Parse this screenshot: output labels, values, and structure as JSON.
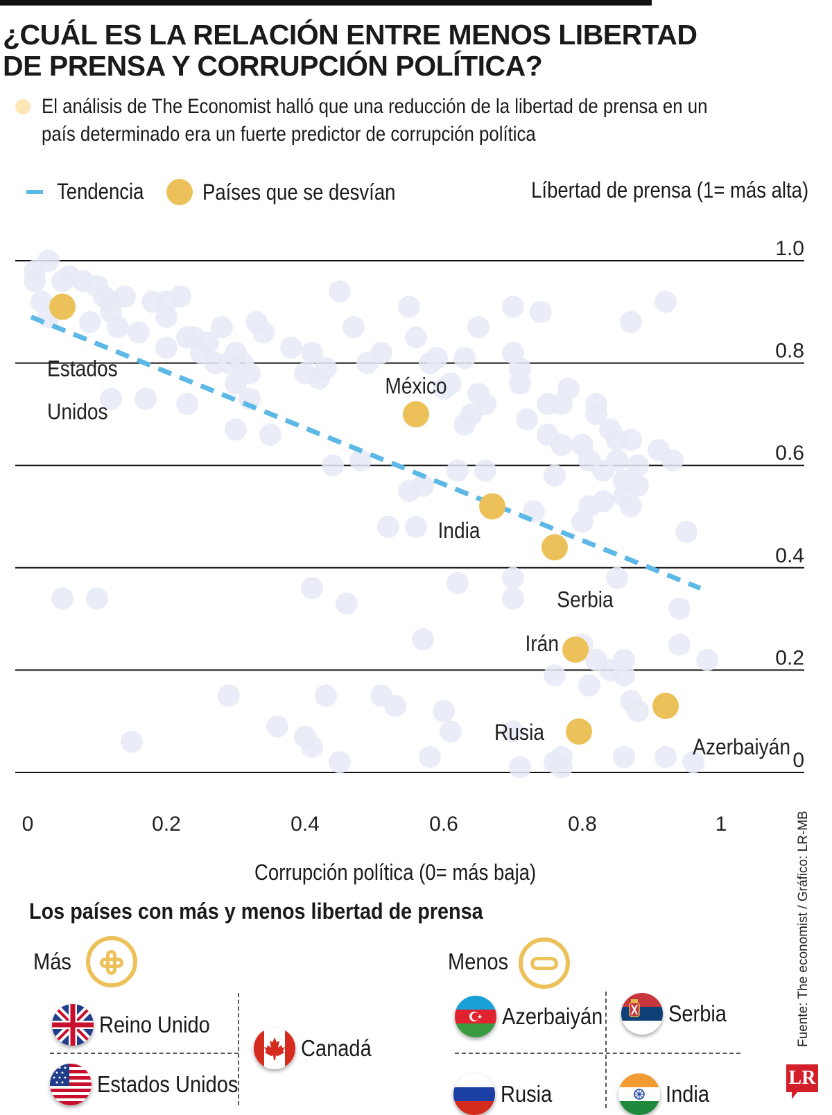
{
  "header": {
    "title_line1": "¿CUÁL ES LA RELACIÓN ENTRE MENOS LIBERTAD",
    "title_line2": "DE PRENSA Y CORRUPCIÓN POLÍTICA?",
    "intro": "El análisis de The Economist halló que  una reducción de la libertad de prensa en un país determinado era un fuerte predictor de corrupción política"
  },
  "legend": {
    "trend": "Tendencia",
    "highlight": "Países que se desvían"
  },
  "colors": {
    "background_dot": "#e6eaf6",
    "highlight_dot": "#ecc15a",
    "trend_line": "#5cb8e6",
    "intro_dot": "#fde7b7",
    "accent_red": "#d41f2b"
  },
  "chart_data": {
    "type": "scatter",
    "title": "¿CUÁL ES LA RELACIÓN ENTRE MENOS LIBERTAD DE PRENSA Y CORRUPCIÓN POLÍTICA?",
    "xlabel": "Corrupción política (0= más baja)",
    "ylabel": "Líbertad de prensa (1= más alta)",
    "xlim": [
      0,
      1
    ],
    "ylim": [
      0,
      1
    ],
    "x_ticks": [
      "0",
      "0.2",
      "0.4",
      "0.6",
      "0.8",
      "1"
    ],
    "x_tick_values": [
      0,
      0.2,
      0.4,
      0.6,
      0.8,
      1
    ],
    "y_ticks": [
      "1.0",
      "0.8",
      "0.6",
      "0.4",
      "0.2",
      "0"
    ],
    "y_tick_values": [
      1.0,
      0.8,
      0.6,
      0.4,
      0.2,
      0
    ],
    "grid": "horizontal",
    "trend": {
      "name": "Tendencia",
      "x": [
        0.005,
        0.97
      ],
      "y": [
        0.89,
        0.36
      ]
    },
    "highlighted": [
      {
        "name": "Estados Unidos",
        "label_lines": [
          "Estados",
          "Unidos"
        ],
        "x": 0.05,
        "y": 0.91
      },
      {
        "name": "México",
        "label_lines": [
          "México"
        ],
        "x": 0.56,
        "y": 0.7
      },
      {
        "name": "India",
        "label_lines": [
          "India"
        ],
        "x": 0.67,
        "y": 0.52
      },
      {
        "name": "Serbia",
        "label_lines": [
          "Serbia"
        ],
        "x": 0.76,
        "y": 0.44
      },
      {
        "name": "Irán",
        "label_lines": [
          "Irán"
        ],
        "x": 0.79,
        "y": 0.24
      },
      {
        "name": "Rusia",
        "label_lines": [
          "Rusia"
        ],
        "x": 0.795,
        "y": 0.08
      },
      {
        "name": "Azerbaiyán",
        "label_lines": [
          "Azerbaiyán"
        ],
        "x": 0.92,
        "y": 0.13
      }
    ],
    "series": [
      {
        "name": "Países",
        "points": [
          [
            0.01,
            0.98
          ],
          [
            0.03,
            1.0
          ],
          [
            0.01,
            0.96
          ],
          [
            0.05,
            0.96
          ],
          [
            0.06,
            0.97
          ],
          [
            0.08,
            0.96
          ],
          [
            0.1,
            0.95
          ],
          [
            0.11,
            0.93
          ],
          [
            0.12,
            0.92
          ],
          [
            0.02,
            0.92
          ],
          [
            0.03,
            0.89
          ],
          [
            0.09,
            0.88
          ],
          [
            0.12,
            0.9
          ],
          [
            0.14,
            0.93
          ],
          [
            0.16,
            0.86
          ],
          [
            0.13,
            0.87
          ],
          [
            0.18,
            0.92
          ],
          [
            0.2,
            0.89
          ],
          [
            0.2,
            0.92
          ],
          [
            0.22,
            0.93
          ],
          [
            0.2,
            0.83
          ],
          [
            0.23,
            0.85
          ],
          [
            0.24,
            0.85
          ],
          [
            0.26,
            0.84
          ],
          [
            0.28,
            0.87
          ],
          [
            0.25,
            0.82
          ],
          [
            0.27,
            0.8
          ],
          [
            0.29,
            0.8
          ],
          [
            0.3,
            0.82
          ],
          [
            0.31,
            0.8
          ],
          [
            0.32,
            0.78
          ],
          [
            0.3,
            0.76
          ],
          [
            0.32,
            0.73
          ],
          [
            0.33,
            0.88
          ],
          [
            0.34,
            0.86
          ],
          [
            0.38,
            0.83
          ],
          [
            0.41,
            0.82
          ],
          [
            0.45,
            0.94
          ],
          [
            0.47,
            0.87
          ],
          [
            0.49,
            0.8
          ],
          [
            0.51,
            0.82
          ],
          [
            0.55,
            0.91
          ],
          [
            0.56,
            0.85
          ],
          [
            0.58,
            0.8
          ],
          [
            0.59,
            0.81
          ],
          [
            0.63,
            0.81
          ],
          [
            0.65,
            0.87
          ],
          [
            0.61,
            0.76
          ],
          [
            0.6,
            0.75
          ],
          [
            0.65,
            0.74
          ],
          [
            0.66,
            0.72
          ],
          [
            0.63,
            0.68
          ],
          [
            0.64,
            0.7
          ],
          [
            0.7,
            0.91
          ],
          [
            0.74,
            0.9
          ],
          [
            0.7,
            0.82
          ],
          [
            0.71,
            0.79
          ],
          [
            0.71,
            0.76
          ],
          [
            0.75,
            0.72
          ],
          [
            0.77,
            0.72
          ],
          [
            0.78,
            0.75
          ],
          [
            0.72,
            0.69
          ],
          [
            0.75,
            0.66
          ],
          [
            0.77,
            0.64
          ],
          [
            0.8,
            0.64
          ],
          [
            0.82,
            0.7
          ],
          [
            0.82,
            0.72
          ],
          [
            0.84,
            0.67
          ],
          [
            0.85,
            0.65
          ],
          [
            0.87,
            0.65
          ],
          [
            0.85,
            0.61
          ],
          [
            0.86,
            0.57
          ],
          [
            0.83,
            0.59
          ],
          [
            0.81,
            0.52
          ],
          [
            0.8,
            0.49
          ],
          [
            0.83,
            0.53
          ],
          [
            0.88,
            0.56
          ],
          [
            0.86,
            0.54
          ],
          [
            0.87,
            0.52
          ],
          [
            0.87,
            0.88
          ],
          [
            0.92,
            0.92
          ],
          [
            0.91,
            0.63
          ],
          [
            0.93,
            0.61
          ],
          [
            0.95,
            0.47
          ],
          [
            0.94,
            0.32
          ],
          [
            0.94,
            0.25
          ],
          [
            0.98,
            0.22
          ],
          [
            0.12,
            0.73
          ],
          [
            0.17,
            0.73
          ],
          [
            0.23,
            0.72
          ],
          [
            0.3,
            0.67
          ],
          [
            0.4,
            0.78
          ],
          [
            0.42,
            0.77
          ],
          [
            0.43,
            0.79
          ],
          [
            0.35,
            0.66
          ],
          [
            0.44,
            0.6
          ],
          [
            0.48,
            0.61
          ],
          [
            0.62,
            0.59
          ],
          [
            0.66,
            0.59
          ],
          [
            0.76,
            0.58
          ],
          [
            0.81,
            0.61
          ],
          [
            0.88,
            0.6
          ],
          [
            0.55,
            0.55
          ],
          [
            0.57,
            0.56
          ],
          [
            0.52,
            0.48
          ],
          [
            0.56,
            0.48
          ],
          [
            0.73,
            0.51
          ],
          [
            0.62,
            0.37
          ],
          [
            0.7,
            0.38
          ],
          [
            0.85,
            0.38
          ],
          [
            0.7,
            0.34
          ],
          [
            0.05,
            0.34
          ],
          [
            0.1,
            0.34
          ],
          [
            0.41,
            0.36
          ],
          [
            0.46,
            0.33
          ],
          [
            0.57,
            0.26
          ],
          [
            0.8,
            0.25
          ],
          [
            0.82,
            0.22
          ],
          [
            0.86,
            0.22
          ],
          [
            0.76,
            0.19
          ],
          [
            0.81,
            0.17
          ],
          [
            0.86,
            0.19
          ],
          [
            0.84,
            0.2
          ],
          [
            0.87,
            0.14
          ],
          [
            0.88,
            0.12
          ],
          [
            0.29,
            0.15
          ],
          [
            0.43,
            0.15
          ],
          [
            0.51,
            0.15
          ],
          [
            0.53,
            0.13
          ],
          [
            0.6,
            0.12
          ],
          [
            0.61,
            0.08
          ],
          [
            0.7,
            0.08
          ],
          [
            0.36,
            0.09
          ],
          [
            0.4,
            0.07
          ],
          [
            0.41,
            0.05
          ],
          [
            0.45,
            0.02
          ],
          [
            0.15,
            0.06
          ],
          [
            0.58,
            0.03
          ],
          [
            0.77,
            0.03
          ],
          [
            0.76,
            0.02
          ],
          [
            0.86,
            0.03
          ],
          [
            0.92,
            0.03
          ],
          [
            0.96,
            0.02
          ],
          [
            0.71,
            0.01
          ],
          [
            0.77,
            0.01
          ]
        ]
      }
    ]
  },
  "bottom": {
    "section_title": "Los países con más y menos libertad de prensa",
    "mas_label": "Más",
    "menos_label": "Menos",
    "mas_countries": [
      "Reino Unido",
      "Estados Unidos",
      "Canadá"
    ],
    "menos_countries": [
      "Azerbaiyán",
      "Serbia",
      "Rusia",
      "India"
    ]
  },
  "footer": {
    "source": "Fuente: The economist / Gráfico: LR-MB",
    "logo": "LR"
  }
}
